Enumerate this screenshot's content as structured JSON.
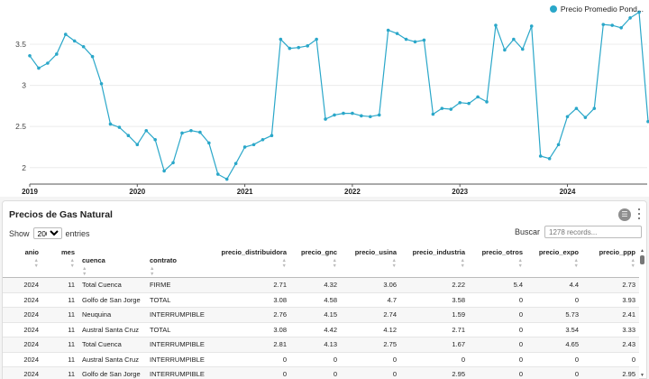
{
  "chart_data": {
    "type": "line",
    "series": [
      {
        "name": "Precio Promedio Pond...",
        "color": "#2aa7c9"
      }
    ],
    "x_ticks": [
      "2019",
      "2020",
      "2021",
      "2022",
      "2023",
      "2024"
    ],
    "y_ticks": [
      "2",
      "2.5",
      "3",
      "3.5"
    ],
    "ylim": [
      1.8,
      3.95
    ],
    "x_start": "2019-01",
    "values": [
      3.36,
      3.21,
      3.27,
      3.38,
      3.62,
      3.54,
      3.47,
      3.35,
      3.02,
      2.53,
      2.49,
      2.39,
      2.28,
      2.45,
      2.34,
      1.96,
      2.06,
      2.42,
      2.45,
      2.43,
      2.3,
      1.92,
      1.86,
      2.05,
      2.25,
      2.28,
      2.34,
      2.39,
      3.56,
      3.45,
      3.46,
      3.48,
      3.56,
      2.59,
      2.64,
      2.66,
      2.66,
      2.63,
      2.62,
      2.64,
      3.67,
      3.63,
      3.56,
      3.53,
      3.55,
      2.65,
      2.72,
      2.71,
      2.79,
      2.78,
      2.86,
      2.8,
      3.73,
      3.43,
      3.56,
      3.44,
      3.72,
      2.14,
      2.11,
      2.28,
      2.62,
      2.72,
      2.61,
      2.72,
      3.74,
      3.73,
      3.7,
      3.82,
      3.89,
      2.56
    ]
  },
  "legend": {
    "label": "Precio Promedio Pond..."
  },
  "panel": {
    "title": "Precios de Gas Natural",
    "filter_icon": "filter-icon",
    "menu_icon": "kebab-menu-icon",
    "show_label": "Show",
    "show_value": "200",
    "entries_label": "entries",
    "search_label": "Buscar",
    "search_placeholder": "1278 records..."
  },
  "table": {
    "columns": [
      "anio",
      "mes",
      "cuenca",
      "contrato",
      "precio_distribuidora",
      "precio_gnc",
      "precio_usina",
      "precio_industria",
      "precio_otros",
      "precio_expo",
      "precio_ppp"
    ],
    "rows": [
      [
        "2024",
        "11",
        "Total Cuenca",
        "FIRME",
        "2.71",
        "4.32",
        "3.06",
        "2.22",
        "5.4",
        "4.4",
        "2.73"
      ],
      [
        "2024",
        "11",
        "Golfo de San Jorge",
        "TOTAL",
        "3.08",
        "4.58",
        "4.7",
        "3.58",
        "0",
        "0",
        "3.93"
      ],
      [
        "2024",
        "11",
        "Neuquina",
        "INTERRUMPIBLE",
        "2.76",
        "4.15",
        "2.74",
        "1.59",
        "0",
        "5.73",
        "2.41"
      ],
      [
        "2024",
        "11",
        "Austral Santa Cruz",
        "TOTAL",
        "3.08",
        "4.42",
        "4.12",
        "2.71",
        "0",
        "3.54",
        "3.33"
      ],
      [
        "2024",
        "11",
        "Total Cuenca",
        "INTERRUMPIBLE",
        "2.81",
        "4.13",
        "2.75",
        "1.67",
        "0",
        "4.65",
        "2.43"
      ],
      [
        "2024",
        "11",
        "Austral Santa Cruz",
        "INTERRUMPIBLE",
        "0",
        "0",
        "0",
        "0",
        "0",
        "0",
        "0"
      ],
      [
        "2024",
        "11",
        "Golfo de San Jorge",
        "INTERRUMPIBLE",
        "0",
        "0",
        "0",
        "2.95",
        "0",
        "0",
        "2.95"
      ]
    ]
  }
}
